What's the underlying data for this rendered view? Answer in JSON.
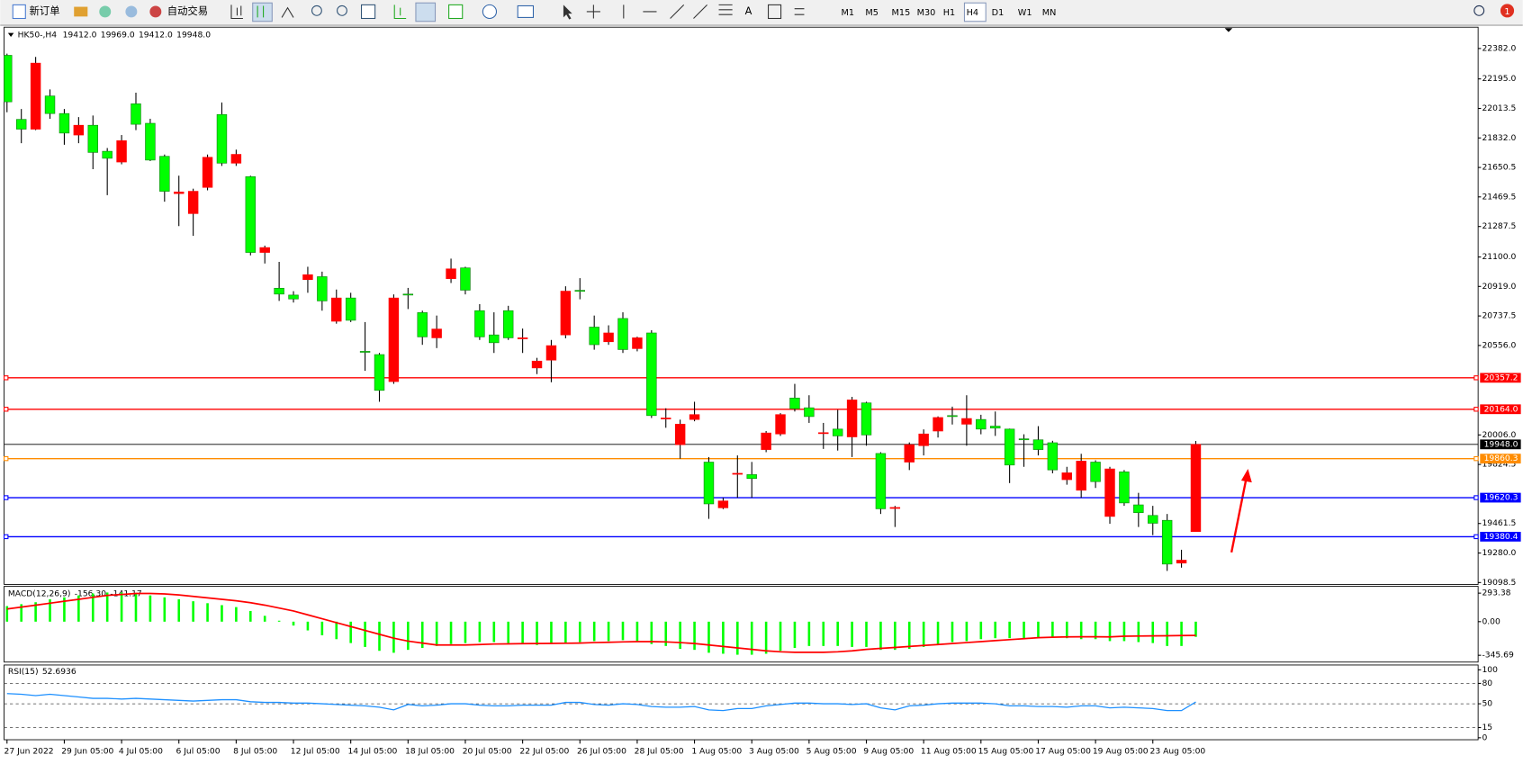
{
  "toolbar": {
    "new_order": "新订单",
    "auto_trading": "自动交易",
    "text_tool": "A",
    "timeframes": [
      "M1",
      "M5",
      "M15",
      "M30",
      "H1",
      "H4",
      "D1",
      "W1",
      "MN"
    ],
    "active_timeframe": "H4",
    "notifications": 1
  },
  "chart_data": [
    {
      "type": "candlestick",
      "title": "HK50-,H4",
      "header_values": [
        "19412.0",
        "19969.0",
        "19412.0",
        "19948.0"
      ],
      "x_labels": [
        "27 Jun 2022",
        "29 Jun 05:00",
        "4 Jul 05:00",
        "6 Jul 05:00",
        "8 Jul 05:00",
        "12 Jul 05:00",
        "14 Jul 05:00",
        "18 Jul 05:00",
        "20 Jul 05:00",
        "22 Jul 05:00",
        "26 Jul 05:00",
        "28 Jul 05:00",
        "1 Aug 05:00",
        "3 Aug 05:00",
        "5 Aug 05:00",
        "9 Aug 05:00",
        "11 Aug 05:00",
        "15 Aug 05:00",
        "17 Aug 05:00",
        "19 Aug 05:00",
        "23 Aug 05:00"
      ],
      "open": [
        22340,
        21946,
        21886,
        22090,
        21982,
        21850,
        21910,
        21750,
        21684,
        22042,
        21922,
        21719,
        21490,
        21367,
        21528,
        21976,
        21677,
        21594,
        21128,
        20908,
        20866,
        20961,
        20979,
        20705,
        20848,
        20520,
        20500,
        20334,
        20872,
        20758,
        20603,
        20967,
        21033,
        20770,
        20621,
        20770,
        20597,
        20418,
        20466,
        20621,
        20895,
        20669,
        20579,
        20722,
        20537,
        20633,
        20107,
        19946,
        20101,
        19839,
        19558,
        19768,
        19762,
        19916,
        20012,
        20233,
        20173,
        20018,
        20042,
        19994,
        20203,
        19892,
        19558,
        19839,
        19940,
        20030,
        20125,
        20072,
        20101,
        20060,
        20042,
        19982,
        19976,
        19958,
        19731,
        19666,
        19839,
        19505,
        19779,
        19576,
        19511,
        19481,
        19218,
        19412
      ],
      "high": [
        22350,
        22010,
        22330,
        22130,
        22010,
        21960,
        21970,
        21770,
        21850,
        22110,
        21950,
        21730,
        21600,
        21520,
        21730,
        22050,
        21760,
        21600,
        21170,
        21070,
        20890,
        21040,
        21010,
        20900,
        20880,
        20700,
        20510,
        20870,
        20910,
        20770,
        20740,
        21090,
        21040,
        20810,
        20760,
        20800,
        20660,
        20480,
        20590,
        20920,
        20970,
        20740,
        20680,
        20760,
        20610,
        20650,
        20170,
        20100,
        20210,
        19870,
        19620,
        19880,
        19840,
        20030,
        20140,
        20320,
        20250,
        20080,
        20160,
        20240,
        20210,
        19900,
        19570,
        19960,
        20040,
        20120,
        20180,
        20250,
        20130,
        20150,
        20045,
        20010,
        20060,
        19970,
        19810,
        19890,
        19850,
        19810,
        19790,
        19650,
        19570,
        19520,
        19300,
        19969
      ],
      "low": [
        21990,
        21800,
        21880,
        21950,
        21790,
        21800,
        21640,
        21480,
        21670,
        21880,
        21690,
        21440,
        21290,
        21230,
        21510,
        21660,
        21660,
        21110,
        21060,
        20830,
        20820,
        20880,
        20770,
        20690,
        20700,
        20400,
        20210,
        20320,
        20780,
        20560,
        20540,
        20940,
        20870,
        20590,
        20510,
        20590,
        20510,
        20380,
        20330,
        20600,
        20840,
        20530,
        20560,
        20510,
        20520,
        20110,
        20050,
        19860,
        20090,
        19490,
        19550,
        19620,
        19620,
        19900,
        20000,
        20150,
        20080,
        19920,
        19910,
        19870,
        19940,
        19520,
        19440,
        19790,
        19880,
        19990,
        20070,
        19940,
        20010,
        20000,
        19710,
        19810,
        19880,
        19770,
        19700,
        19620,
        19680,
        19460,
        19570,
        19440,
        19390,
        19170,
        19190,
        19412
      ],
      "close": [
        22054,
        21886,
        22292,
        21982,
        21862,
        21910,
        21743,
        21707,
        21815,
        21916,
        21696,
        21504,
        21500,
        21504,
        21713,
        21677,
        21731,
        21128,
        21158,
        20872,
        20842,
        20991,
        20830,
        20848,
        20711,
        20518,
        20280,
        20848,
        20870,
        20609,
        20657,
        21027,
        20896,
        20609,
        20573,
        20603,
        20603,
        20460,
        20555,
        20890,
        20890,
        20561,
        20633,
        20531,
        20603,
        20125,
        20110,
        20072,
        20131,
        19582,
        19600,
        19770,
        19738,
        20018,
        20131,
        20167,
        20119,
        20020,
        20000,
        20221,
        20006,
        19552,
        19560,
        19946,
        20012,
        20113,
        20120,
        20107,
        20042,
        20048,
        19821,
        19980,
        19916,
        19791,
        19773,
        19845,
        19719,
        19797,
        19588,
        19528,
        19463,
        19212,
        19236,
        19948
      ],
      "up_color": "#ff0000",
      "down_color": "#00ff00",
      "ylim": [
        19087,
        22513
      ],
      "yticks": [
        {
          "value": 22382,
          "label": "22382.0"
        },
        {
          "value": 22195,
          "label": "22195.0"
        },
        {
          "value": 22013.5,
          "label": "22013.5"
        },
        {
          "value": 21832,
          "label": "21832.0"
        },
        {
          "value": 21650.5,
          "label": "21650.5"
        },
        {
          "value": 21469.5,
          "label": "21469.5"
        },
        {
          "value": 21287.5,
          "label": "21287.5"
        },
        {
          "value": 21100,
          "label": "21100.0"
        },
        {
          "value": 20919,
          "label": "20919.0"
        },
        {
          "value": 20737.5,
          "label": "20737.5"
        },
        {
          "value": 20556,
          "label": "20556.0"
        },
        {
          "value": 20006,
          "label": "20006.0"
        },
        {
          "value": 19824.5,
          "label": "19824.5"
        },
        {
          "value": 19461.5,
          "label": "19461.5"
        },
        {
          "value": 19280,
          "label": "19280.0"
        },
        {
          "value": 19098.5,
          "label": "19098.5"
        }
      ],
      "levels": [
        {
          "value": 20357.2,
          "label": "20357.2",
          "color": "#ff0000"
        },
        {
          "value": 20164,
          "label": "20164.0",
          "color": "#ff0000"
        },
        {
          "value": 19860.3,
          "label": "19860.3",
          "color": "#ff8c00"
        },
        {
          "value": 19620.3,
          "label": "19620.3",
          "color": "#0000ff"
        },
        {
          "value": 19380.4,
          "label": "19380.4",
          "color": "#0000ff"
        }
      ],
      "current": {
        "value": 19948,
        "label": "19948.0",
        "color": "#000000"
      }
    },
    {
      "type": "macd",
      "title": "MACD(12,26,9)",
      "header_values": [
        "-156.30",
        "-141.17"
      ],
      "macd": [
        160,
        180,
        200,
        230,
        250,
        270,
        290,
        300,
        300,
        290,
        270,
        250,
        230,
        210,
        190,
        170,
        150,
        110,
        60,
        10,
        -40,
        -90,
        -140,
        -180,
        -220,
        -260,
        -300,
        -320,
        -290,
        -270,
        -250,
        -230,
        -220,
        -210,
        -210,
        -220,
        -230,
        -240,
        -230,
        -220,
        -210,
        -200,
        -200,
        -190,
        -200,
        -230,
        -250,
        -280,
        -290,
        -320,
        -330,
        -340,
        -340,
        -330,
        -300,
        -270,
        -250,
        -250,
        -250,
        -260,
        -260,
        -290,
        -290,
        -280,
        -260,
        -230,
        -210,
        -200,
        -180,
        -170,
        -170,
        -170,
        -160,
        -160,
        -170,
        -180,
        -180,
        -200,
        -200,
        -210,
        -220,
        -250,
        -250,
        -156.3
      ],
      "signal": [
        130,
        150,
        170,
        190,
        210,
        230,
        250,
        270,
        280,
        290,
        290,
        285,
        275,
        260,
        245,
        230,
        215,
        195,
        170,
        140,
        110,
        70,
        30,
        -10,
        -50,
        -90,
        -130,
        -170,
        -200,
        -220,
        -240,
        -240,
        -240,
        -235,
        -230,
        -228,
        -226,
        -225,
        -224,
        -222,
        -220,
        -215,
        -212,
        -208,
        -205,
        -205,
        -208,
        -215,
        -225,
        -240,
        -255,
        -270,
        -285,
        -300,
        -310,
        -315,
        -315,
        -315,
        -310,
        -300,
        -285,
        -275,
        -265,
        -255,
        -245,
        -235,
        -225,
        -215,
        -205,
        -195,
        -185,
        -175,
        -165,
        -160,
        -157,
        -155,
        -155,
        -157,
        -150,
        -148,
        -146,
        -145,
        -143,
        -141.17
      ],
      "macd_color": "#00ff00",
      "signal_color": "#ff0000",
      "ylim": [
        -415.6,
        363.3
      ],
      "yticks": [
        293.38,
        {
          "value": 0,
          "label": "0.00"
        },
        -345.69
      ]
    },
    {
      "type": "rsi",
      "title": "RSI(15)",
      "header_values": [
        "52.6936"
      ],
      "values": [
        65,
        64,
        62,
        64,
        62,
        60,
        58,
        58,
        57,
        58,
        57,
        56,
        55,
        54,
        55,
        56,
        56,
        53,
        52,
        52,
        51,
        51,
        50,
        49,
        48,
        47,
        45,
        41,
        49,
        47,
        48,
        50,
        50,
        48,
        47,
        47,
        48,
        48,
        48,
        52,
        52,
        49,
        48,
        50,
        49,
        46,
        45,
        45,
        46,
        41,
        40,
        43,
        43,
        47,
        49,
        51,
        51,
        50,
        50,
        49,
        50,
        44,
        41,
        47,
        48,
        50,
        51,
        51,
        51,
        50,
        47,
        47,
        46,
        46,
        45,
        47,
        47,
        44,
        45,
        44,
        43,
        40,
        40,
        52.6936
      ],
      "color": "#1e90ff",
      "ylim": [
        -2.9,
        107.1
      ],
      "yticks": [
        100,
        80,
        50,
        15,
        0
      ],
      "levels": [
        80,
        50,
        15
      ]
    }
  ]
}
